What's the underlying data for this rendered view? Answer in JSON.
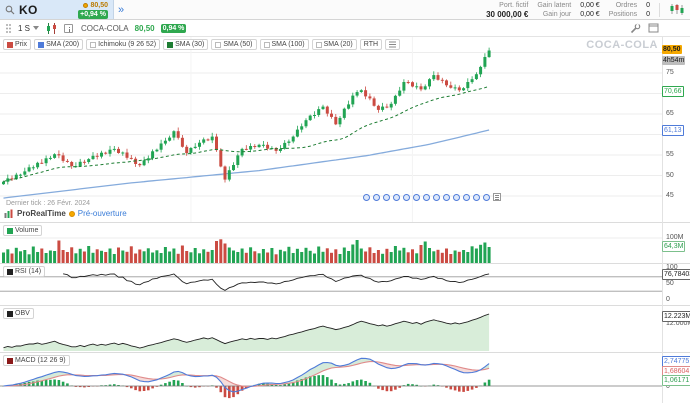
{
  "header": {
    "symbol": "KO",
    "tab_price": "80,50",
    "tab_change": "+0,94 %",
    "expand_icon": "»"
  },
  "portfolio": {
    "label": "Port. fictif",
    "value": "30 000,00 €",
    "gain_latent_label": "Gain latent",
    "gain_latent_value": "0,00 €",
    "gain_jour_label": "Gain jour",
    "gain_jour_value": "0,00 €",
    "ordres_label": "Ordres",
    "ordres_value": "0",
    "positions_label": "Positions",
    "positions_value": "0"
  },
  "toolbar": {
    "timeframe": "1 S",
    "symbol": "COCA-COLA",
    "price": "80,50",
    "change": "0,94 %"
  },
  "legend": {
    "items": [
      {
        "label": "Prix",
        "color": "#cb4b42",
        "checked": true
      },
      {
        "label": "SMA (200)",
        "color": "#4f7bd9",
        "checked": true
      },
      {
        "label": "Ichimoku (9 26 52)",
        "color": null,
        "checked": false
      },
      {
        "label": "SMA (30)",
        "color": "#1e7d33",
        "checked": true
      },
      {
        "label": "SMA (50)",
        "color": null,
        "checked": false
      },
      {
        "label": "SMA (100)",
        "color": null,
        "checked": false
      },
      {
        "label": "SMA (20)",
        "color": null,
        "checked": false
      }
    ],
    "rth": "RTH"
  },
  "watermark": "COCA-COLA",
  "main_footer": {
    "last_tick": "Dernier tick : 26 Févr. 2024",
    "brand": "ProRealTime",
    "session": "Pré-ouverture"
  },
  "chart_data": [
    {
      "type": "candlestick",
      "title": "COCA-COLA",
      "timeframe_label": "1 S (weekly)",
      "ylim": [
        44,
        85
      ],
      "y_ticks": [
        45,
        50,
        55,
        60,
        65,
        70,
        75,
        80
      ],
      "axis_ticks_visible": [
        75,
        65,
        60,
        55,
        50,
        45
      ],
      "last_price": 80.5,
      "price_badge": "80,50",
      "time_badge": "4h54m",
      "sma30_last": 70.66,
      "sma30_badge": "70,66",
      "sma200_last": 61.13,
      "sma200_badge": "61,13",
      "event_marker_count": 13,
      "up_color": "#21a453",
      "down_color": "#cb4b42",
      "sma200_color": "#85abdc",
      "sma30_color": "#1e7d33",
      "closes": [
        48.5,
        49.3,
        49.1,
        50.2,
        50.2,
        51.0,
        52.0,
        52.0,
        53.1,
        53.0,
        54.2,
        54.3,
        55.2,
        54.9,
        53.55,
        53.3,
        52.3,
        52.3,
        53.35,
        53.3,
        54.0,
        54.8,
        54.6,
        55.55,
        55.3,
        56.3,
        56.5,
        55.5,
        55.6,
        54.3,
        54.1,
        52.8,
        52.5,
        53.7,
        54.2,
        55.9,
        56.3,
        57.8,
        58.5,
        59.25,
        60.8,
        59.2,
        57.0,
        55.5,
        56.7,
        57.0,
        58.0,
        58.8,
        58.6,
        59.5,
        56.2,
        52.2,
        49.0,
        51.3,
        52.55,
        54.9,
        56.5,
        56.35,
        57.2,
        56.95,
        57.5,
        57.5,
        56.55,
        56.7,
        56.0,
        56.5,
        57.95,
        58.3,
        59.5,
        61.2,
        62.0,
        63.5,
        64.6,
        64.75,
        66.2,
        66.8,
        65.1,
        64.3,
        62.5,
        64.05,
        66.3,
        67.35,
        69.5,
        70.35,
        70.8,
        69.3,
        68.8,
        67.0,
        66.0,
        66.8,
        66.6,
        67.5,
        69.45,
        70.7,
        72.8,
        72.75,
        71.7,
        71.75,
        71.0,
        71.75,
        73.5,
        74.5,
        73.35,
        73.2,
        72.0,
        71.4,
        71.5,
        70.8,
        71.3,
        72.8,
        73.5,
        74.7,
        76.5,
        78.9,
        80.5
      ],
      "sma200_anchors": [
        [
          0,
          44.5
        ],
        [
          30,
          48.2
        ],
        [
          60,
          51.2
        ],
        [
          85,
          54.8
        ],
        [
          100,
          57.6
        ],
        [
          114,
          61.1
        ]
      ]
    },
    {
      "type": "bar",
      "name": "Volume",
      "unit": "M",
      "scale_label": "100M",
      "current_label": "64,3M",
      "values": [
        42,
        55,
        38,
        61,
        47,
        52,
        35,
        66,
        44,
        58,
        40,
        50,
        48,
        90,
        52,
        44,
        63,
        39,
        57,
        46,
        68,
        41,
        55,
        49,
        44,
        58,
        36,
        62,
        50,
        45,
        67,
        38,
        54,
        47,
        59,
        42,
        51,
        40,
        64,
        46,
        58,
        37,
        70,
        48,
        43,
        60,
        39,
        55,
        45,
        52,
        88,
        95,
        78,
        62,
        50,
        44,
        58,
        41,
        63,
        47,
        39,
        56,
        42,
        60,
        35,
        53,
        47,
        65,
        40,
        57,
        44,
        61,
        49,
        38,
        66,
        45,
        59,
        41,
        55,
        36,
        62,
        48,
        74,
        92,
        58,
        46,
        63,
        40,
        52,
        37,
        57,
        44,
        68,
        50,
        61,
        43,
        55,
        39,
        72,
        86,
        60,
        47,
        53,
        41,
        58,
        36,
        50,
        45,
        52,
        44,
        67,
        58,
        73,
        82,
        64
      ]
    },
    {
      "type": "line",
      "name": "RSI (14)",
      "period": 14,
      "range": [
        0,
        100
      ],
      "levels": [
        70,
        30
      ],
      "current_label": "76,78403",
      "axis_labels": [
        "100",
        "50",
        "0"
      ]
    },
    {
      "type": "area",
      "name": "OBV",
      "current_label": "12.223M",
      "grid_label": "12.000M"
    },
    {
      "type": "macd",
      "name": "MACD (12 26 9)",
      "params": [
        12,
        26,
        9
      ],
      "macd_label": "2,74775",
      "signal_label": "1,68604",
      "hist_label": "1,06171",
      "zero_label": "0"
    }
  ]
}
